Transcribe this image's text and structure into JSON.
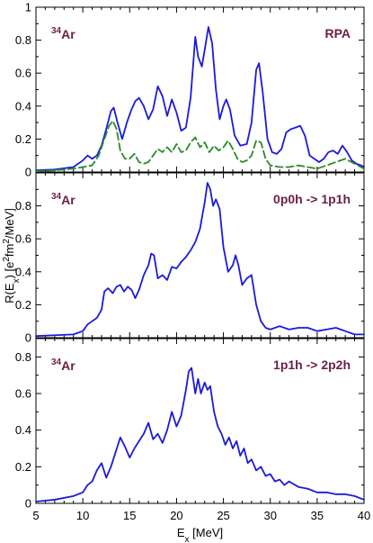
{
  "chart_data": {
    "type": "line",
    "xlabel_main": "E",
    "xlabel_sub": "x",
    "xlabel_unit": " [MeV]",
    "ylabel_parts": [
      "R(E",
      "x",
      ") [e",
      "2",
      "fm",
      "2",
      "/MeV]"
    ],
    "xlim": [
      5,
      40
    ],
    "xticks": [
      5,
      10,
      15,
      20,
      25,
      30,
      35,
      40
    ],
    "panels": [
      {
        "nucleus_mass": "34",
        "nucleus_symbol": "Ar",
        "label": "RPA",
        "ylim": [
          0,
          1.0
        ],
        "yticks": [
          0,
          0.2,
          0.4,
          0.6,
          0.8,
          1
        ],
        "ytick_labels": [
          "0",
          "0.2",
          "0.4",
          "0.6",
          "0.8",
          "1"
        ],
        "series": [
          {
            "style": "solid",
            "color": "#1a1adb",
            "x": [
              5,
              7,
              9,
              10,
              10.5,
              11,
              11.5,
              12,
              12.5,
              13,
              13.3,
              13.7,
              14.2,
              14.7,
              15.2,
              15.6,
              16,
              16.5,
              17,
              17.5,
              18,
              18.5,
              19,
              19.5,
              20,
              20.5,
              21,
              21.5,
              22,
              22.3,
              22.7,
              23,
              23.4,
              23.8,
              24.2,
              24.6,
              25,
              25.3,
              25.7,
              26.2,
              26.8,
              27.5,
              28,
              28.5,
              28.8,
              29.2,
              29.7,
              30.2,
              30.7,
              31.2,
              31.7,
              32.2,
              32.7,
              33.2,
              33.7,
              34.2,
              34.7,
              35.2,
              35.7,
              36.2,
              36.7,
              37.2,
              37.7,
              38.2,
              38.7,
              39.2,
              39.7,
              40
            ],
            "y": [
              0.01,
              0.015,
              0.03,
              0.07,
              0.1,
              0.08,
              0.1,
              0.16,
              0.26,
              0.37,
              0.39,
              0.3,
              0.2,
              0.3,
              0.38,
              0.43,
              0.45,
              0.4,
              0.32,
              0.38,
              0.52,
              0.46,
              0.34,
              0.44,
              0.36,
              0.25,
              0.27,
              0.45,
              0.82,
              0.7,
              0.64,
              0.74,
              0.88,
              0.78,
              0.5,
              0.32,
              0.4,
              0.44,
              0.38,
              0.22,
              0.16,
              0.17,
              0.3,
              0.62,
              0.66,
              0.48,
              0.2,
              0.12,
              0.11,
              0.14,
              0.24,
              0.26,
              0.27,
              0.28,
              0.22,
              0.1,
              0.08,
              0.06,
              0.08,
              0.12,
              0.13,
              0.11,
              0.16,
              0.12,
              0.07,
              0.05,
              0.04,
              0.03
            ]
          },
          {
            "style": "dashed",
            "color": "#2a8a2a",
            "x": [
              5,
              7,
              9,
              10,
              11,
              11.7,
              12.3,
              12.8,
              13.2,
              13.6,
              14,
              14.5,
              15,
              15.5,
              16,
              16.5,
              17,
              17.5,
              18,
              18.5,
              19,
              19.5,
              20,
              20.5,
              21,
              21.5,
              22,
              22.5,
              23,
              23.5,
              24,
              24.5,
              25,
              25.5,
              26,
              26.5,
              27,
              27.5,
              28,
              28.5,
              29,
              29.5,
              30,
              31,
              32,
              33,
              34,
              35,
              36,
              37,
              38,
              39,
              40
            ],
            "y": [
              0.005,
              0.01,
              0.02,
              0.03,
              0.04,
              0.1,
              0.2,
              0.28,
              0.31,
              0.26,
              0.13,
              0.08,
              0.08,
              0.11,
              0.06,
              0.05,
              0.06,
              0.1,
              0.14,
              0.12,
              0.15,
              0.12,
              0.17,
              0.12,
              0.13,
              0.18,
              0.21,
              0.15,
              0.18,
              0.12,
              0.16,
              0.13,
              0.15,
              0.19,
              0.14,
              0.08,
              0.06,
              0.07,
              0.1,
              0.19,
              0.18,
              0.08,
              0.04,
              0.03,
              0.03,
              0.04,
              0.03,
              0.02,
              0.04,
              0.06,
              0.08,
              0.05,
              0.02
            ]
          }
        ]
      },
      {
        "nucleus_mass": "34",
        "nucleus_symbol": "Ar",
        "label": "0p0h -> 1p1h",
        "ylim": [
          0,
          1.0
        ],
        "yticks": [
          0,
          0.2,
          0.4,
          0.6,
          0.8
        ],
        "ytick_labels": [
          "0",
          "0.2",
          "0.4",
          "0.6",
          "0.8"
        ],
        "series": [
          {
            "style": "solid",
            "color": "#1a1adb",
            "x": [
              5,
              7,
              9,
              10,
              10.5,
              11,
              11.5,
              12,
              12.3,
              12.7,
              13.2,
              13.6,
              14,
              14.4,
              14.8,
              15.2,
              15.6,
              16,
              16.5,
              17,
              17.3,
              17.6,
              18,
              18.5,
              19,
              19.5,
              20,
              20.5,
              21,
              21.5,
              22,
              22.5,
              23,
              23.3,
              23.6,
              23.9,
              24.2,
              24.6,
              25,
              25.5,
              26,
              26.3,
              26.6,
              27,
              27.5,
              28,
              28.5,
              29,
              29.5,
              30,
              30.5,
              31,
              32,
              33,
              34,
              35,
              36,
              37,
              38,
              39,
              40
            ],
            "y": [
              0.01,
              0.015,
              0.02,
              0.04,
              0.08,
              0.1,
              0.12,
              0.17,
              0.28,
              0.3,
              0.27,
              0.31,
              0.32,
              0.28,
              0.31,
              0.29,
              0.24,
              0.29,
              0.38,
              0.44,
              0.51,
              0.5,
              0.36,
              0.38,
              0.35,
              0.43,
              0.42,
              0.46,
              0.49,
              0.53,
              0.58,
              0.66,
              0.82,
              0.94,
              0.9,
              0.8,
              0.84,
              0.78,
              0.55,
              0.4,
              0.44,
              0.5,
              0.44,
              0.32,
              0.36,
              0.38,
              0.2,
              0.1,
              0.06,
              0.05,
              0.06,
              0.07,
              0.05,
              0.06,
              0.06,
              0.04,
              0.05,
              0.06,
              0.04,
              0.02,
              0.02
            ]
          }
        ]
      },
      {
        "nucleus_mass": "34",
        "nucleus_symbol": "Ar",
        "label": "1p1h -> 2p2h",
        "ylim": [
          0,
          0.9
        ],
        "yticks": [
          0,
          0.2,
          0.4,
          0.6,
          0.8
        ],
        "ytick_labels": [
          "0",
          "0.2",
          "0.4",
          "0.6",
          "0.8"
        ],
        "series": [
          {
            "style": "solid",
            "color": "#1a1adb",
            "x": [
              5,
              7,
              9,
              10,
              10.5,
              11,
              11.5,
              12,
              12.5,
              13,
              13.5,
              14,
              14.5,
              15,
              15.5,
              16,
              16.5,
              17,
              17.5,
              18,
              18.5,
              19,
              19.5,
              20,
              20.5,
              21,
              21.3,
              21.6,
              22,
              22.3,
              22.6,
              23,
              23.3,
              23.6,
              24,
              24.4,
              24.8,
              25.2,
              25.6,
              26,
              26.4,
              26.8,
              27.2,
              27.6,
              28,
              28.5,
              29,
              29.5,
              30,
              30.5,
              31,
              31.5,
              32,
              33,
              34,
              35,
              36,
              37,
              38,
              39,
              40
            ],
            "y": [
              0.01,
              0.02,
              0.04,
              0.06,
              0.1,
              0.12,
              0.18,
              0.22,
              0.14,
              0.2,
              0.28,
              0.36,
              0.31,
              0.25,
              0.3,
              0.34,
              0.38,
              0.44,
              0.35,
              0.38,
              0.33,
              0.4,
              0.5,
              0.42,
              0.48,
              0.62,
              0.72,
              0.74,
              0.6,
              0.68,
              0.6,
              0.66,
              0.62,
              0.64,
              0.5,
              0.42,
              0.38,
              0.32,
              0.36,
              0.3,
              0.34,
              0.26,
              0.3,
              0.22,
              0.24,
              0.18,
              0.2,
              0.15,
              0.16,
              0.12,
              0.13,
              0.1,
              0.12,
              0.09,
              0.08,
              0.06,
              0.06,
              0.05,
              0.05,
              0.04,
              0.02
            ]
          }
        ]
      }
    ]
  }
}
